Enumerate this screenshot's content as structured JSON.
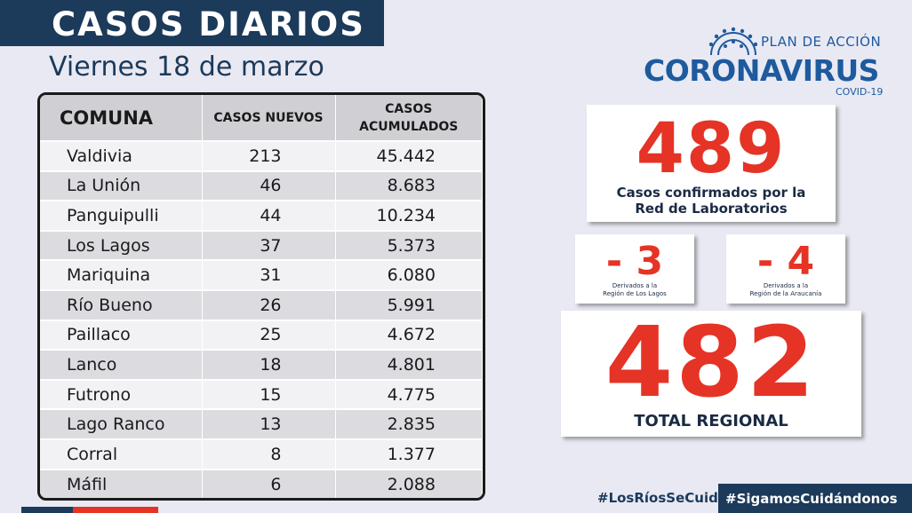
{
  "header": {
    "title": "CASOS DIARIOS",
    "date": "Viernes 18 de marzo"
  },
  "table": {
    "headers": {
      "comuna": "COMUNA",
      "nuevos": "CASOS NUEVOS",
      "acum_1": "CASOS",
      "acum_2": "ACUMULADOS"
    },
    "rows": [
      {
        "comuna": "Valdivia",
        "nuevos": "213",
        "acumulados": "45.442"
      },
      {
        "comuna": "La Unión",
        "nuevos": "46",
        "acumulados": "8.683"
      },
      {
        "comuna": "Panguipulli",
        "nuevos": "44",
        "acumulados": "10.234"
      },
      {
        "comuna": "Los Lagos",
        "nuevos": "37",
        "acumulados": "5.373"
      },
      {
        "comuna": "Mariquina",
        "nuevos": "31",
        "acumulados": "6.080"
      },
      {
        "comuna": "Río Bueno",
        "nuevos": "26",
        "acumulados": "5.991"
      },
      {
        "comuna": "Paillaco",
        "nuevos": "25",
        "acumulados": "4.672"
      },
      {
        "comuna": "Lanco",
        "nuevos": "18",
        "acumulados": "4.801"
      },
      {
        "comuna": "Futrono",
        "nuevos": "15",
        "acumulados": "4.775"
      },
      {
        "comuna": "Lago Ranco",
        "nuevos": "13",
        "acumulados": "2.835"
      },
      {
        "comuna": "Corral",
        "nuevos": "8",
        "acumulados": "1.377"
      },
      {
        "comuna": "Máfil",
        "nuevos": "6",
        "acumulados": "2.088"
      }
    ]
  },
  "logo": {
    "plan": "PLAN DE ACCIÓN",
    "name": "CORONAVIRUS",
    "sub": "COVID-19",
    "icon": "virus-icon"
  },
  "stats": {
    "confirmed": {
      "value": "489",
      "label_1": "Casos confirmados  por la",
      "label_2": "Red de Laboratorios"
    },
    "derived_los_lagos": {
      "value": "- 3",
      "label_1": "Derivados a la",
      "label_2": "Región de Los Lagos"
    },
    "derived_araucania": {
      "value": "- 4",
      "label_1": "Derivados a la",
      "label_2": "Región de la Araucanía"
    },
    "total": {
      "value": "482",
      "label": "TOTAL REGIONAL"
    }
  },
  "hashtags": {
    "h1": "#LosRíosSeCuida",
    "h2": "#SigamosCuidándonos"
  },
  "colors": {
    "navy": "#1c3a5a",
    "red": "#e53325",
    "logo_blue": "#1e5a9e"
  }
}
